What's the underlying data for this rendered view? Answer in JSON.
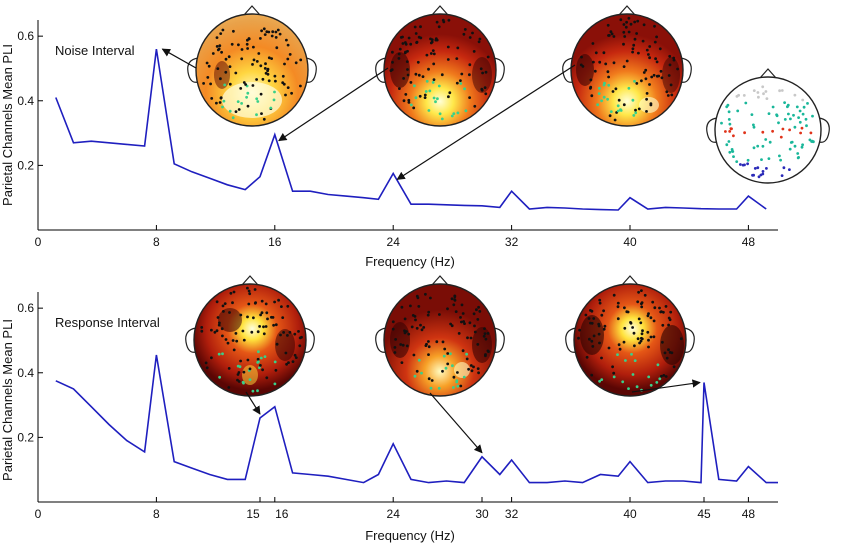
{
  "chart_data": [
    {
      "type": "line",
      "annotation": "Noise Interval",
      "xlabel": "Frequency (Hz)",
      "ylabel": "Parietal Channels Mean PLI",
      "xlim": [
        0,
        50
      ],
      "ylim": [
        0,
        0.65
      ],
      "xticks": [
        0,
        8,
        16,
        24,
        32,
        40,
        48
      ],
      "xtick_labels": [
        "0",
        "8",
        "16",
        "24",
        "32",
        "40",
        "48"
      ],
      "yticks": [
        0.2,
        0.4,
        0.6
      ],
      "ytick_labels": [
        "0.2",
        "0.4",
        "0.6"
      ],
      "series": [
        {
          "color": "#1f1fbf",
          "x": [
            1.2,
            2.4,
            3.6,
            4.8,
            6,
            7.2,
            8,
            9.2,
            10.4,
            11.6,
            12.8,
            14,
            15,
            16,
            17.2,
            18.4,
            19.6,
            20.8,
            22,
            23,
            24,
            25.2,
            26.4,
            27.6,
            28.8,
            30,
            31.2,
            32,
            33.2,
            34.4,
            35.6,
            36.8,
            38,
            39.2,
            40,
            41.2,
            42.4,
            43.6,
            44.8,
            46,
            47.2,
            48,
            49.2
          ],
          "y": [
            0.41,
            0.27,
            0.275,
            0.27,
            0.265,
            0.26,
            0.56,
            0.205,
            0.18,
            0.16,
            0.14,
            0.125,
            0.165,
            0.295,
            0.12,
            0.12,
            0.11,
            0.105,
            0.1,
            0.095,
            0.175,
            0.08,
            0.08,
            0.078,
            0.076,
            0.075,
            0.07,
            0.12,
            0.065,
            0.07,
            0.068,
            0.065,
            0.063,
            0.062,
            0.1,
            0.065,
            0.07,
            0.068,
            0.066,
            0.065,
            0.065,
            0.105,
            0.065
          ]
        }
      ],
      "arrows_to_x": [
        8,
        16,
        24
      ]
    },
    {
      "type": "line",
      "annotation": "Response Interval",
      "xlabel": "Frequency (Hz)",
      "ylabel": "Parietal Channels Mean PLI",
      "xlim": [
        0,
        50
      ],
      "ylim": [
        0,
        0.65
      ],
      "xticks": [
        0,
        8,
        15,
        16,
        24,
        30,
        32,
        40,
        45,
        48
      ],
      "xtick_labels": [
        "0",
        "8",
        "15",
        "16",
        "24",
        "30",
        "32",
        "40",
        "45",
        "48"
      ],
      "yticks": [
        0.2,
        0.4,
        0.6
      ],
      "ytick_labels": [
        "0.2",
        "0.4",
        "0.6"
      ],
      "series": [
        {
          "color": "#1f1fbf",
          "x": [
            1.2,
            2.4,
            3.6,
            4.8,
            6,
            7.2,
            8,
            9.2,
            10.4,
            11.6,
            12.8,
            14,
            15,
            16,
            17.2,
            18.4,
            19.6,
            20.8,
            22,
            23,
            24,
            25.2,
            26.4,
            27.6,
            28.8,
            30,
            31.2,
            32,
            33.2,
            34.4,
            35.6,
            36.8,
            38,
            39.2,
            40,
            41.2,
            42.4,
            43.6,
            44.8,
            45,
            46,
            47.2,
            48,
            49.2,
            50
          ],
          "y": [
            0.375,
            0.35,
            0.295,
            0.24,
            0.19,
            0.155,
            0.455,
            0.125,
            0.105,
            0.085,
            0.07,
            0.07,
            0.26,
            0.295,
            0.09,
            0.085,
            0.08,
            0.07,
            0.06,
            0.085,
            0.18,
            0.07,
            0.06,
            0.065,
            0.06,
            0.14,
            0.085,
            0.13,
            0.06,
            0.06,
            0.065,
            0.06,
            0.085,
            0.08,
            0.125,
            0.06,
            0.065,
            0.065,
            0.06,
            0.37,
            0.07,
            0.065,
            0.11,
            0.06,
            0.06
          ]
        }
      ],
      "arrows_to_x": [
        15,
        30,
        45
      ]
    }
  ]
}
